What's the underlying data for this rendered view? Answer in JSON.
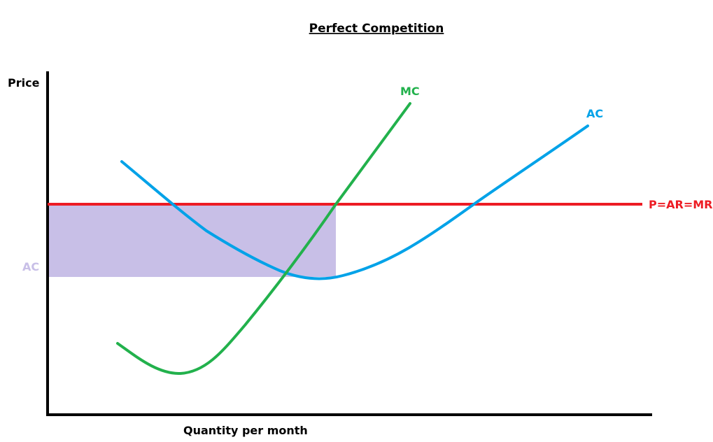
{
  "title": "Perfect Competition",
  "axes": {
    "y_label": "Price",
    "x_label": "Quantity per month"
  },
  "curves": {
    "mc": {
      "label": "MC",
      "color": "#22b14c"
    },
    "ac": {
      "label": "AC",
      "color": "#00a2e8"
    },
    "price": {
      "label": "P=AR=MR",
      "color": "#ed1c24"
    }
  },
  "profit_area": {
    "color": "#c8bfe7",
    "y_label": "AC"
  },
  "colors": {
    "axis": "#000000",
    "title": "#000000"
  }
}
